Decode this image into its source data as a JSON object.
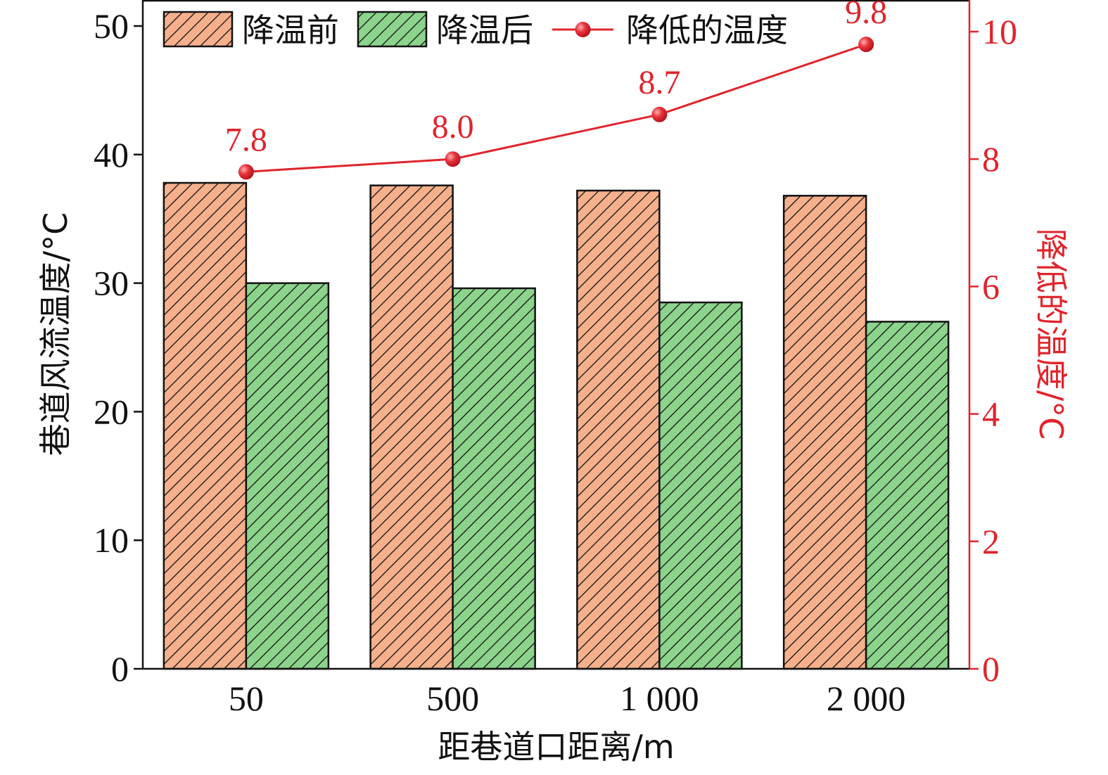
{
  "chart_data": {
    "type": "bar",
    "categories": [
      "50",
      "500",
      "1 000",
      "2 000"
    ],
    "xlabel": "距巷道口距离/m",
    "ylabel": "巷道风流温度/°C",
    "y2label": "降低的温度/°C",
    "ylim": [
      0,
      50
    ],
    "y2lim": [
      0,
      10
    ],
    "yticks": [
      "0",
      "10",
      "20",
      "30",
      "40",
      "50"
    ],
    "y2ticks": [
      "0",
      "2",
      "4",
      "6",
      "8",
      "10"
    ],
    "series": [
      {
        "name": "降温前",
        "type": "bar",
        "axis": "left",
        "color": "#F6B08C",
        "pattern": "diagonal-hatch",
        "values": [
          37.8,
          37.6,
          37.2,
          36.8
        ]
      },
      {
        "name": "降温后",
        "type": "bar",
        "axis": "left",
        "color": "#8CD48C",
        "pattern": "diagonal-hatch",
        "values": [
          30.0,
          29.6,
          28.5,
          27.0
        ]
      },
      {
        "name": "降低的温度",
        "type": "line",
        "axis": "right",
        "color": "#E0242C",
        "marker": "circle",
        "values": [
          7.8,
          8.0,
          8.7,
          9.8
        ],
        "labels": [
          "7.8",
          "8.0",
          "8.7",
          "9.8"
        ]
      }
    ],
    "grid": false,
    "legend_position": "top-left"
  }
}
